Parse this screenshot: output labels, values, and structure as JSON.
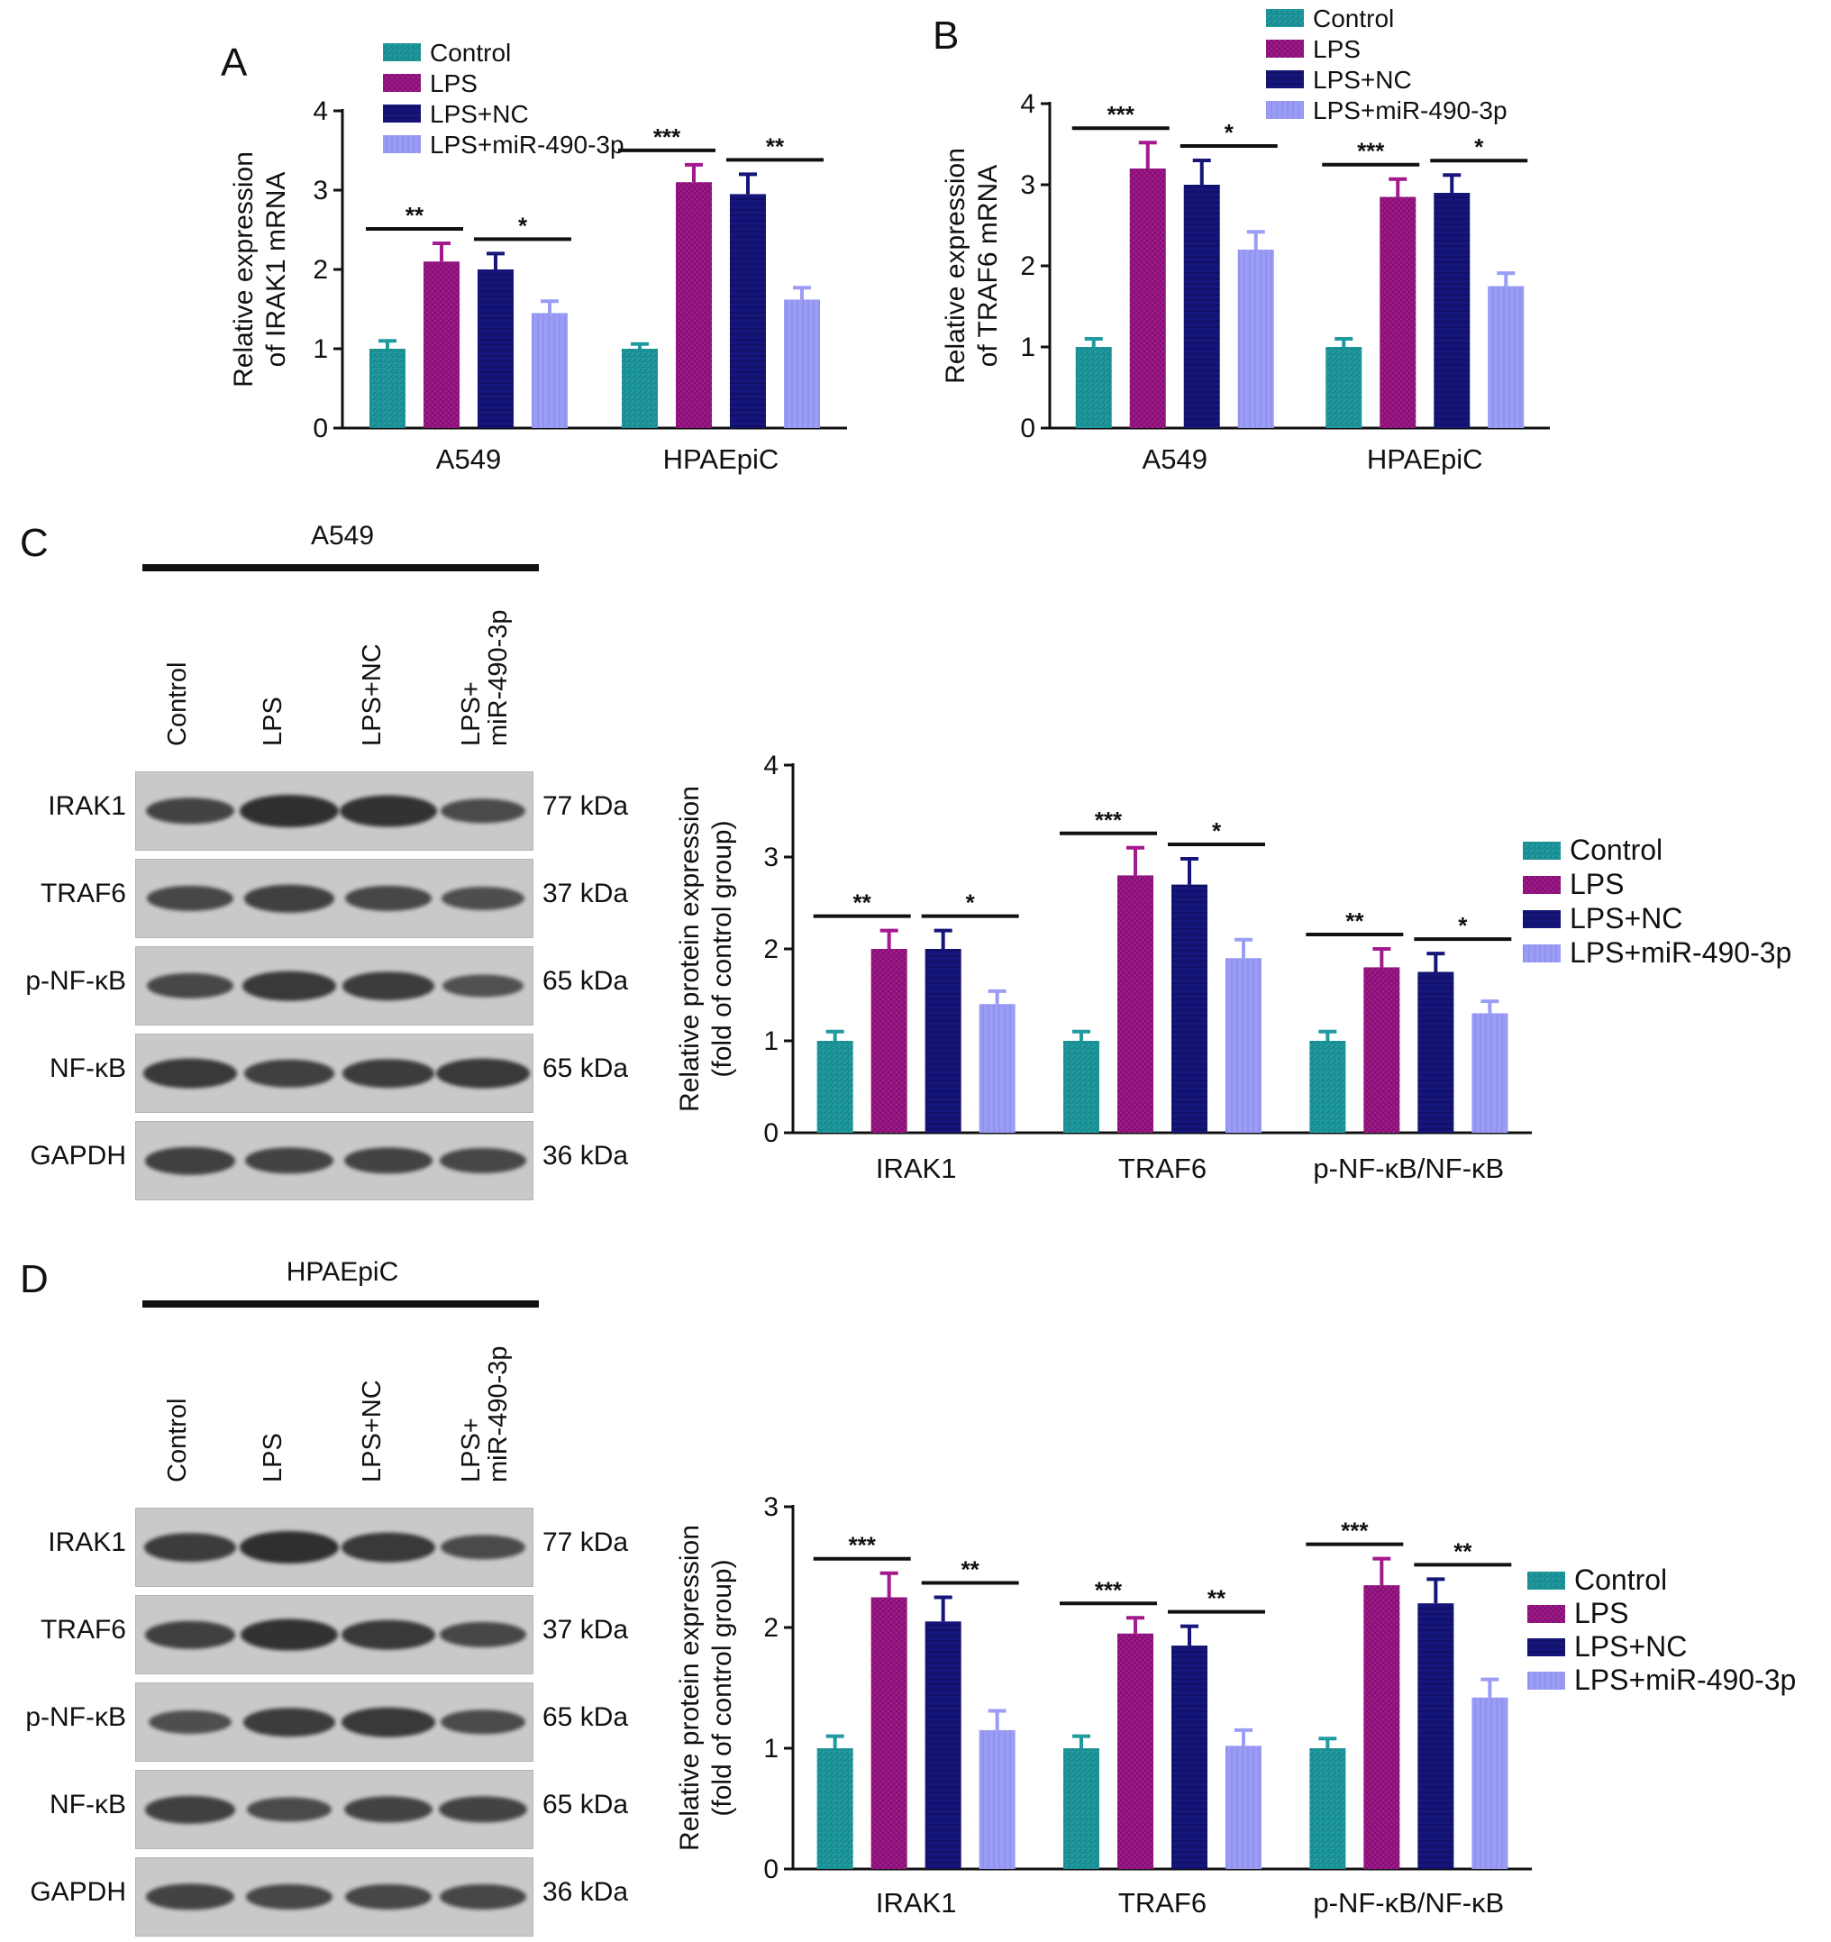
{
  "panels": {
    "A": "A",
    "B": "B",
    "C": "C",
    "D": "D"
  },
  "colors": {
    "control": "#1f9a9f",
    "lps": "#a3198e",
    "lps_nc": "#15157a",
    "lps_mir": "#9b9df5"
  },
  "legend_entries": [
    "Control",
    "LPS",
    "LPS+NC",
    "LPS+miR-490-3p"
  ],
  "blots": {
    "C": {
      "group_label": "A549",
      "lanes": [
        "Control",
        "LPS",
        "LPS+NC",
        "LPS+\nmiR-490-3p"
      ],
      "rows": [
        {
          "protein": "IRAK1",
          "kda": "77 kDa",
          "intensity": [
            0.7,
            1.0,
            0.95,
            0.6
          ]
        },
        {
          "protein": "TRAF6",
          "kda": "37 kDa",
          "intensity": [
            0.65,
            0.75,
            0.65,
            0.55
          ]
        },
        {
          "protein": "p-NF-κB",
          "kda": "65 kDa",
          "intensity": [
            0.65,
            0.85,
            0.8,
            0.5
          ]
        },
        {
          "protein": "NF-κB",
          "kda": "65 kDa",
          "intensity": [
            0.85,
            0.75,
            0.8,
            0.85
          ]
        },
        {
          "protein": "GAPDH",
          "kda": "36 kDa",
          "intensity": [
            0.75,
            0.7,
            0.7,
            0.65
          ]
        }
      ]
    },
    "D": {
      "group_label": "HPAEpiC",
      "lanes": [
        "Control",
        "LPS",
        "LPS+NC",
        "LPS+\nmiR-490-3p"
      ],
      "rows": [
        {
          "protein": "IRAK1",
          "kda": "77 kDa",
          "intensity": [
            0.8,
            1.0,
            0.85,
            0.6
          ]
        },
        {
          "protein": "TRAF6",
          "kda": "37 kDa",
          "intensity": [
            0.75,
            0.95,
            0.85,
            0.65
          ]
        },
        {
          "protein": "p-NF-κB",
          "kda": "65 kDa",
          "intensity": [
            0.55,
            0.8,
            0.85,
            0.6
          ]
        },
        {
          "protein": "NF-κB",
          "kda": "65 kDa",
          "intensity": [
            0.75,
            0.6,
            0.7,
            0.7
          ]
        },
        {
          "protein": "GAPDH",
          "kda": "36 kDa",
          "intensity": [
            0.7,
            0.65,
            0.65,
            0.65
          ]
        }
      ]
    }
  },
  "chart_data": [
    {
      "id": "A",
      "type": "bar",
      "title": "",
      "xlabel": "",
      "ylabel": "Relative expression\nof IRAK1 mRNA",
      "ylim": [
        0,
        4
      ],
      "yticks": [
        0,
        1,
        2,
        3,
        4
      ],
      "categories": [
        "A549",
        "HPAEpiC"
      ],
      "series": [
        {
          "name": "Control",
          "values": [
            1.0,
            1.0
          ],
          "errors": [
            0.1,
            0.06
          ]
        },
        {
          "name": "LPS",
          "values": [
            2.1,
            3.1
          ],
          "errors": [
            0.23,
            0.22
          ]
        },
        {
          "name": "LPS+NC",
          "values": [
            2.0,
            2.95
          ],
          "errors": [
            0.2,
            0.25
          ]
        },
        {
          "name": "LPS+miR-490-3p",
          "values": [
            1.45,
            1.62
          ],
          "errors": [
            0.15,
            0.15
          ]
        }
      ],
      "significance": [
        {
          "category": 0,
          "pair": [
            0,
            1
          ],
          "label": "**"
        },
        {
          "category": 0,
          "pair": [
            2,
            3
          ],
          "label": "*"
        },
        {
          "category": 1,
          "pair": [
            0,
            1
          ],
          "label": "***"
        },
        {
          "category": 1,
          "pair": [
            2,
            3
          ],
          "label": "**"
        }
      ],
      "legend": "top-left"
    },
    {
      "id": "B",
      "type": "bar",
      "title": "",
      "xlabel": "",
      "ylabel": "Relative expression\nof TRAF6 mRNA",
      "ylim": [
        0,
        4
      ],
      "yticks": [
        0,
        1,
        2,
        3,
        4
      ],
      "categories": [
        "A549",
        "HPAEpiC"
      ],
      "series": [
        {
          "name": "Control",
          "values": [
            1.0,
            1.0
          ],
          "errors": [
            0.1,
            0.1
          ]
        },
        {
          "name": "LPS",
          "values": [
            3.2,
            2.85
          ],
          "errors": [
            0.32,
            0.22
          ]
        },
        {
          "name": "LPS+NC",
          "values": [
            3.0,
            2.9
          ],
          "errors": [
            0.3,
            0.22
          ]
        },
        {
          "name": "LPS+miR-490-3p",
          "values": [
            2.2,
            1.75
          ],
          "errors": [
            0.22,
            0.16
          ]
        }
      ],
      "significance": [
        {
          "category": 0,
          "pair": [
            0,
            1
          ],
          "label": "***"
        },
        {
          "category": 0,
          "pair": [
            2,
            3
          ],
          "label": "*"
        },
        {
          "category": 1,
          "pair": [
            0,
            1
          ],
          "label": "***"
        },
        {
          "category": 1,
          "pair": [
            2,
            3
          ],
          "label": "*"
        }
      ],
      "legend": "top"
    },
    {
      "id": "C",
      "type": "bar",
      "title": "",
      "xlabel": "",
      "ylabel": "Relative protein expression\n(fold of control group)",
      "ylim": [
        0,
        4
      ],
      "yticks": [
        0,
        1,
        2,
        3,
        4
      ],
      "categories": [
        "IRAK1",
        "TRAF6",
        "p-NF-κB/NF-κB"
      ],
      "series": [
        {
          "name": "Control",
          "values": [
            1.0,
            1.0,
            1.0
          ],
          "errors": [
            0.1,
            0.1,
            0.1
          ]
        },
        {
          "name": "LPS",
          "values": [
            2.0,
            2.8,
            1.8
          ],
          "errors": [
            0.2,
            0.3,
            0.2
          ]
        },
        {
          "name": "LPS+NC",
          "values": [
            2.0,
            2.7,
            1.75
          ],
          "errors": [
            0.2,
            0.28,
            0.2
          ]
        },
        {
          "name": "LPS+miR-490-3p",
          "values": [
            1.4,
            1.9,
            1.3
          ],
          "errors": [
            0.14,
            0.2,
            0.13
          ]
        }
      ],
      "significance": [
        {
          "category": 0,
          "pair": [
            0,
            1
          ],
          "label": "**"
        },
        {
          "category": 0,
          "pair": [
            2,
            3
          ],
          "label": "*"
        },
        {
          "category": 1,
          "pair": [
            0,
            1
          ],
          "label": "***"
        },
        {
          "category": 1,
          "pair": [
            2,
            3
          ],
          "label": "*"
        },
        {
          "category": 2,
          "pair": [
            0,
            1
          ],
          "label": "**"
        },
        {
          "category": 2,
          "pair": [
            2,
            3
          ],
          "label": "*"
        }
      ],
      "legend": "right"
    },
    {
      "id": "D",
      "type": "bar",
      "title": "",
      "xlabel": "",
      "ylabel": "Relative protein expression\n(fold of control group)",
      "ylim": [
        0,
        3
      ],
      "yticks": [
        0,
        1,
        2,
        3
      ],
      "categories": [
        "IRAK1",
        "TRAF6",
        "p-NF-κB/NF-κB"
      ],
      "series": [
        {
          "name": "Control",
          "values": [
            1.0,
            1.0,
            1.0
          ],
          "errors": [
            0.1,
            0.1,
            0.08
          ]
        },
        {
          "name": "LPS",
          "values": [
            2.25,
            1.95,
            2.35
          ],
          "errors": [
            0.2,
            0.13,
            0.22
          ]
        },
        {
          "name": "LPS+NC",
          "values": [
            2.05,
            1.85,
            2.2
          ],
          "errors": [
            0.2,
            0.16,
            0.2
          ]
        },
        {
          "name": "LPS+miR-490-3p",
          "values": [
            1.15,
            1.02,
            1.42
          ],
          "errors": [
            0.16,
            0.13,
            0.15
          ]
        }
      ],
      "significance": [
        {
          "category": 0,
          "pair": [
            0,
            1
          ],
          "label": "***"
        },
        {
          "category": 0,
          "pair": [
            2,
            3
          ],
          "label": "**"
        },
        {
          "category": 1,
          "pair": [
            0,
            1
          ],
          "label": "***"
        },
        {
          "category": 1,
          "pair": [
            2,
            3
          ],
          "label": "**"
        },
        {
          "category": 2,
          "pair": [
            0,
            1
          ],
          "label": "***"
        },
        {
          "category": 2,
          "pair": [
            2,
            3
          ],
          "label": "**"
        }
      ],
      "legend": "right"
    }
  ]
}
